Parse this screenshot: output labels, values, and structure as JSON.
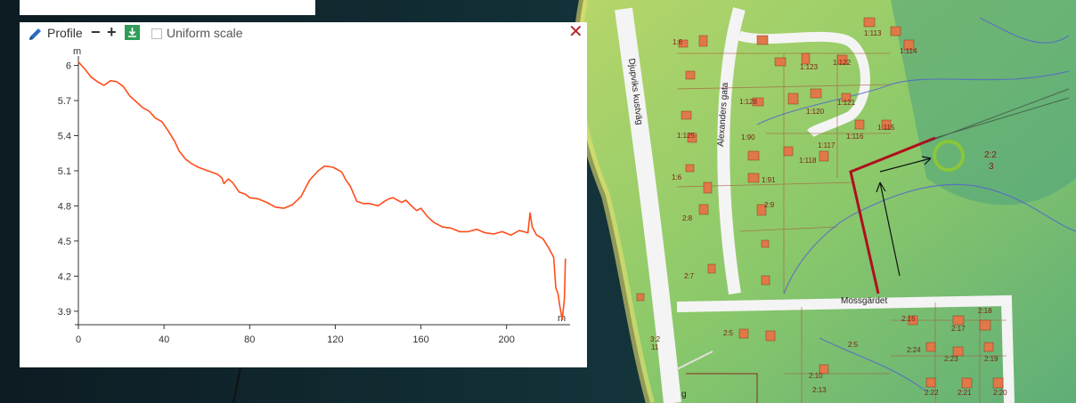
{
  "profile": {
    "title": "Profile",
    "zoom_out": "−",
    "zoom_in": "+",
    "download_icon": "download-icon",
    "uniform_scale_label": "Uniform scale",
    "uniform_scale_checked": false,
    "close": "✕",
    "colors": {
      "line": "#ff4d1a",
      "download": "#2f9d59",
      "close": "#b3282d"
    }
  },
  "map": {
    "labels": [
      {
        "text": "Djupviks kustväg"
      },
      {
        "text": "Alexanders gata"
      },
      {
        "text": "Mossgärdet"
      },
      {
        "text": "1:113"
      },
      {
        "text": "1:114"
      },
      {
        "text": "1:123"
      },
      {
        "text": "1:122"
      },
      {
        "text": "1:128"
      },
      {
        "text": "1:120"
      },
      {
        "text": "1:121"
      },
      {
        "text": "1:116"
      },
      {
        "text": "1:115"
      },
      {
        "text": "1:90"
      },
      {
        "text": "1:117"
      },
      {
        "text": "1:118"
      },
      {
        "text": "1:91"
      },
      {
        "text": "1:6"
      },
      {
        "text": "1:125"
      },
      {
        "text": "1:6"
      },
      {
        "text": "2:8"
      },
      {
        "text": "2:9"
      },
      {
        "text": "2:7"
      },
      {
        "text": "2:2"
      },
      {
        "text": "3"
      },
      {
        "text": "2:16"
      },
      {
        "text": "2:17"
      },
      {
        "text": "2:18"
      },
      {
        "text": "2:24"
      },
      {
        "text": "2:23"
      },
      {
        "text": "2:19"
      },
      {
        "text": "2:22"
      },
      {
        "text": "2:21"
      },
      {
        "text": "2:20"
      },
      {
        "text": "2:13"
      },
      {
        "text": "2:10"
      },
      {
        "text": "2:5"
      },
      {
        "text": "2:5"
      },
      {
        "text": "3:2"
      },
      {
        "text": "11"
      },
      {
        "text": "g"
      }
    ]
  },
  "chart_data": {
    "type": "line",
    "title": "",
    "xlabel": "m",
    "ylabel": "m",
    "xlim": [
      0,
      228
    ],
    "ylim": [
      3.8,
      6.05
    ],
    "x_ticks": [
      "0",
      "40",
      "80",
      "120",
      "160",
      "200"
    ],
    "y_ticks": [
      "3.9",
      "4.2",
      "4.5",
      "4.8",
      "5.1",
      "5.4",
      "5.7",
      "6"
    ],
    "series": [
      {
        "values": [
          [
            0,
            6.03
          ],
          [
            3,
            5.97
          ],
          [
            6,
            5.9
          ],
          [
            9,
            5.86
          ],
          [
            12,
            5.83
          ],
          [
            15,
            5.87
          ],
          [
            18,
            5.86
          ],
          [
            21,
            5.82
          ],
          [
            24,
            5.74
          ],
          [
            27,
            5.69
          ],
          [
            30,
            5.64
          ],
          [
            33,
            5.61
          ],
          [
            36,
            5.55
          ],
          [
            39,
            5.52
          ],
          [
            42,
            5.44
          ],
          [
            45,
            5.35
          ],
          [
            47,
            5.27
          ],
          [
            50,
            5.2
          ],
          [
            53,
            5.16
          ],
          [
            56,
            5.13
          ],
          [
            59,
            5.11
          ],
          [
            62,
            5.09
          ],
          [
            65,
            5.07
          ],
          [
            67,
            5.04
          ],
          [
            68,
            4.99
          ],
          [
            70,
            5.03
          ],
          [
            72,
            5.0
          ],
          [
            75,
            4.92
          ],
          [
            78,
            4.9
          ],
          [
            80,
            4.87
          ],
          [
            84,
            4.86
          ],
          [
            88,
            4.83
          ],
          [
            92,
            4.79
          ],
          [
            96,
            4.78
          ],
          [
            100,
            4.81
          ],
          [
            104,
            4.88
          ],
          [
            108,
            5.02
          ],
          [
            112,
            5.1
          ],
          [
            115,
            5.14
          ],
          [
            119,
            5.13
          ],
          [
            123,
            5.09
          ],
          [
            125,
            5.02
          ],
          [
            127,
            4.97
          ],
          [
            130,
            4.84
          ],
          [
            133,
            4.82
          ],
          [
            136,
            4.82
          ],
          [
            140,
            4.8
          ],
          [
            143,
            4.84
          ],
          [
            145,
            4.86
          ],
          [
            147,
            4.87
          ],
          [
            149,
            4.85
          ],
          [
            151,
            4.83
          ],
          [
            153,
            4.85
          ],
          [
            155,
            4.81
          ],
          [
            158,
            4.76
          ],
          [
            160,
            4.78
          ],
          [
            163,
            4.71
          ],
          [
            166,
            4.66
          ],
          [
            170,
            4.62
          ],
          [
            174,
            4.61
          ],
          [
            178,
            4.58
          ],
          [
            182,
            4.58
          ],
          [
            186,
            4.6
          ],
          [
            190,
            4.57
          ],
          [
            194,
            4.56
          ],
          [
            198,
            4.58
          ],
          [
            202,
            4.55
          ],
          [
            206,
            4.59
          ],
          [
            210,
            4.57
          ],
          [
            211,
            4.74
          ],
          [
            212,
            4.62
          ],
          [
            214,
            4.55
          ],
          [
            217,
            4.52
          ],
          [
            220,
            4.43
          ],
          [
            222,
            4.36
          ],
          [
            223,
            4.1
          ],
          [
            224,
            4.05
          ],
          [
            225,
            3.93
          ],
          [
            226,
            3.83
          ],
          [
            227,
            4.0
          ],
          [
            227.5,
            4.35
          ]
        ]
      }
    ]
  }
}
